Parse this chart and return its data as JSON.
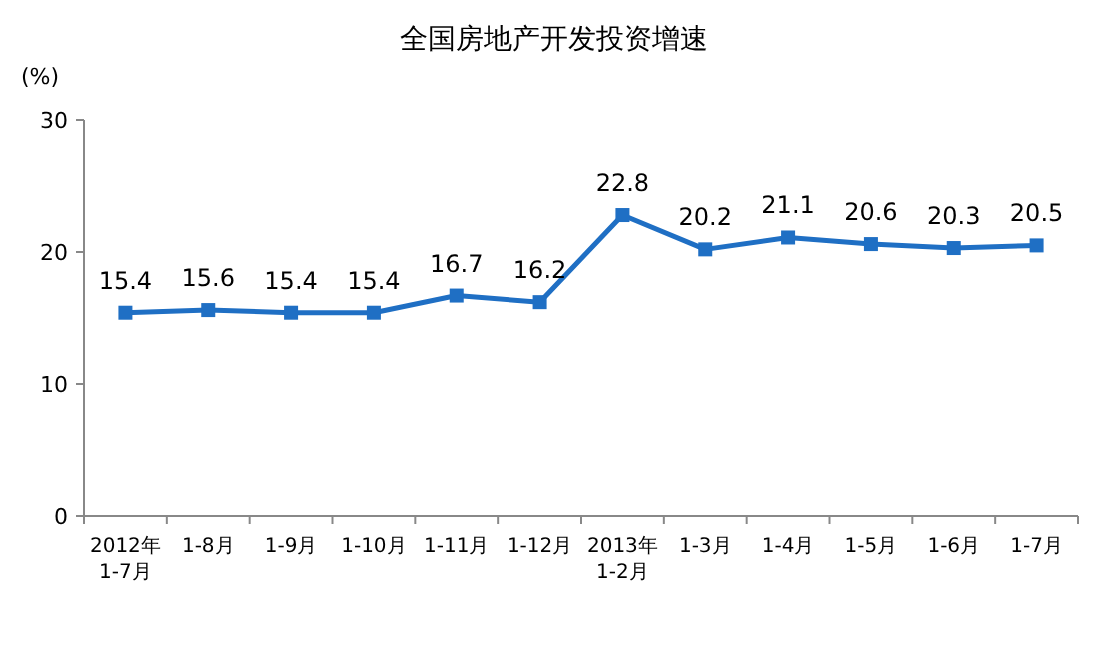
{
  "chart_data": {
    "type": "line",
    "title": "全国房地产开发投资增速",
    "ylabel": "(%)",
    "categories": [
      "2012年\n1-7月",
      "1-8月",
      "1-9月",
      "1-10月",
      "1-11月",
      "1-12月",
      "2013年\n1-2月",
      "1-3月",
      "1-4月",
      "1-5月",
      "1-6月",
      "1-7月"
    ],
    "series": [
      {
        "color": "#1f6fc4",
        "values": [
          15.4,
          15.6,
          15.4,
          15.4,
          16.7,
          16.2,
          22.8,
          20.2,
          21.1,
          20.6,
          20.3,
          20.5
        ]
      }
    ],
    "ylim": [
      0,
      30
    ],
    "yticks": [
      0,
      10,
      20,
      30
    ],
    "marker": "square",
    "data_labels": true,
    "grid": false
  }
}
